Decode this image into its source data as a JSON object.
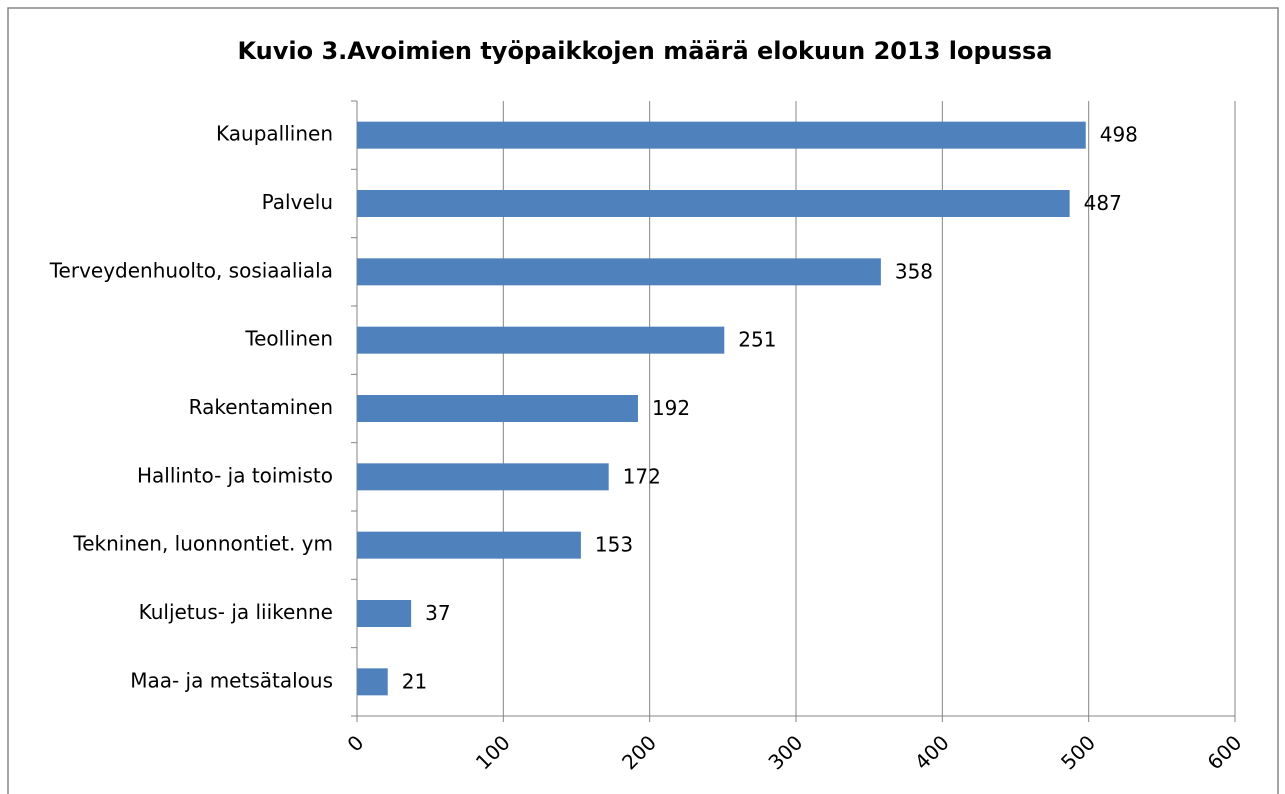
{
  "chart_data": {
    "type": "bar",
    "orientation": "horizontal",
    "title": "Kuvio 3.Avoimien työpaikkojen määrä elokuun 2013 lopussa",
    "categories": [
      "Kaupallinen",
      "Palvelu",
      "Terveydenhuolto, sosiaaliala",
      "Teollinen",
      "Rakentaminen",
      "Hallinto- ja toimisto",
      "Tekninen, luonnontiet. ym",
      "Kuljetus- ja liikenne",
      "Maa- ja metsätalous"
    ],
    "values": [
      498,
      487,
      358,
      251,
      192,
      172,
      153,
      37,
      21
    ],
    "color": "#4f81bd",
    "xlim": [
      0,
      600
    ],
    "xticks": [
      0,
      100,
      200,
      300,
      400,
      500,
      600
    ],
    "grid": true
  }
}
